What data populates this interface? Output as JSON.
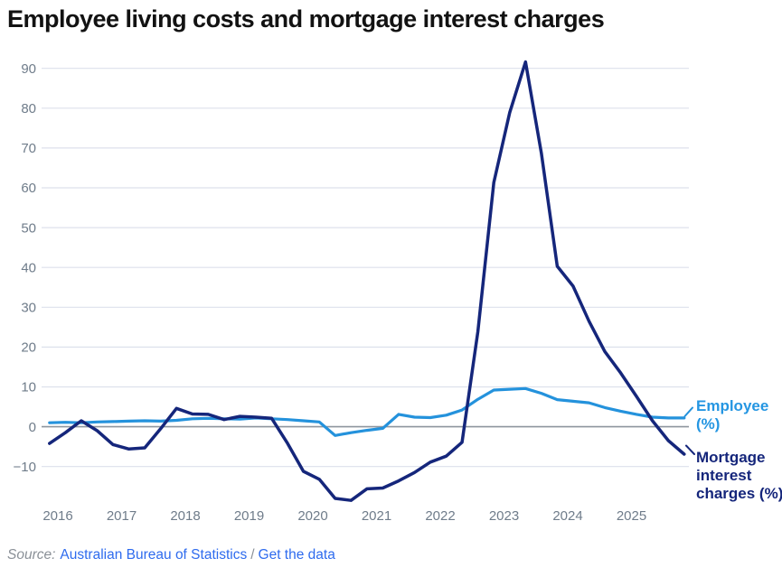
{
  "title": "Employee living costs and mortgage interest charges",
  "source": {
    "prefix": "Source:",
    "publisher_link": "Australian Bureau of Statistics",
    "separator": "/",
    "get_data_link": "Get the data"
  },
  "colors": {
    "employee_line": "#2492dc",
    "employee_label": "#2596e2",
    "mortgage_line": "#15267b",
    "mortgage_label": "#15267b",
    "gridline": "#dde1ec",
    "zero_line": "#8e959e",
    "axis_label": "#6f7c8a",
    "link_blue": "#2e6bee",
    "source_gray": "#8a9097",
    "title_color": "#121212"
  },
  "chart_data": {
    "type": "line",
    "title": "Employee living costs and mortgage interest charges",
    "x_unit": "quarter",
    "x": [
      "2015-Q4",
      "2016-Q1",
      "2016-Q2",
      "2016-Q3",
      "2016-Q4",
      "2017-Q1",
      "2017-Q2",
      "2017-Q3",
      "2017-Q4",
      "2018-Q1",
      "2018-Q2",
      "2018-Q3",
      "2018-Q4",
      "2019-Q1",
      "2019-Q2",
      "2019-Q3",
      "2019-Q4",
      "2020-Q1",
      "2020-Q2",
      "2020-Q3",
      "2020-Q4",
      "2021-Q1",
      "2021-Q2",
      "2021-Q3",
      "2021-Q4",
      "2022-Q1",
      "2022-Q2",
      "2022-Q3",
      "2022-Q4",
      "2023-Q1",
      "2023-Q2",
      "2023-Q3",
      "2023-Q4",
      "2024-Q1",
      "2024-Q2",
      "2024-Q3",
      "2024-Q4",
      "2025-Q1",
      "2025-Q2",
      "2025-Q3",
      "2025-Q4"
    ],
    "x_axis_tick_labels": [
      "2016",
      "2017",
      "2018",
      "2019",
      "2020",
      "2021",
      "2022",
      "2023",
      "2024",
      "2025"
    ],
    "y_axis_ticks": [
      90,
      80,
      70,
      60,
      50,
      40,
      30,
      20,
      10,
      0,
      -10
    ],
    "ylim": [
      -22,
      95
    ],
    "grid": "horizontal",
    "legend_position": "right-of-line-end",
    "series": [
      {
        "name": "Employee (%)",
        "label_text": "Employee (%)",
        "color": "#2492dc",
        "values": [
          1.0,
          1.1,
          1.0,
          1.2,
          1.3,
          1.4,
          1.5,
          1.4,
          1.6,
          2.0,
          2.1,
          2.0,
          1.9,
          2.2,
          2.0,
          1.8,
          1.5,
          1.2,
          -2.2,
          -1.5,
          -0.9,
          -0.4,
          3.1,
          2.4,
          2.3,
          2.9,
          4.2,
          6.9,
          9.2,
          9.4,
          9.6,
          8.4,
          6.8,
          6.4,
          6.0,
          4.8,
          3.9,
          3.1,
          2.4,
          2.2,
          2.2
        ]
      },
      {
        "name": "Mortgage interest charges (%)",
        "label_text": "Mortgage interest charges (%)",
        "color": "#15267b",
        "values": [
          -4.2,
          -1.5,
          1.5,
          -1.0,
          -4.5,
          -5.6,
          -5.3,
          -0.5,
          4.6,
          3.2,
          3.1,
          1.8,
          2.6,
          2.4,
          2.1,
          -4.2,
          -11.2,
          -13.2,
          -18.0,
          -18.5,
          -15.6,
          -15.4,
          -13.6,
          -11.5,
          -8.9,
          -7.4,
          -3.9,
          23.9,
          61.3,
          78.9,
          91.6,
          68.6,
          40.3,
          35.3,
          26.5,
          18.9,
          13.5,
          7.6,
          1.5,
          -3.5,
          -6.9
        ]
      }
    ]
  }
}
